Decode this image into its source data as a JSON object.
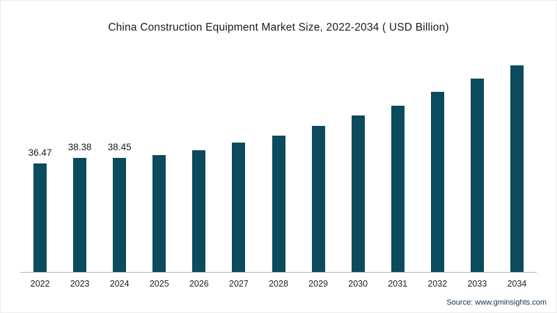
{
  "chart_data": {
    "type": "bar",
    "title": "China Construction Equipment Market Size, 2022-2034 ( USD Billion)",
    "categories": [
      "2022",
      "2023",
      "2024",
      "2025",
      "2026",
      "2027",
      "2028",
      "2029",
      "2030",
      "2031",
      "2032",
      "2033",
      "2034"
    ],
    "values": [
      36.47,
      38.38,
      38.45,
      39.4,
      41.0,
      43.7,
      45.9,
      49.2,
      52.8,
      56.1,
      60.7,
      65.2,
      71.5
    ],
    "data_labels": [
      "36.47",
      "38.38",
      "38.45",
      "",
      "",
      "",
      "",
      "",
      "",
      "",
      "",
      "",
      ""
    ],
    "xlabel": "",
    "ylabel": "",
    "ylim": [
      0,
      75
    ],
    "bar_color": "#0c4a5e",
    "grid": "off",
    "legend": "none"
  },
  "footer": {
    "source": "Source: www.gminsights.com"
  }
}
